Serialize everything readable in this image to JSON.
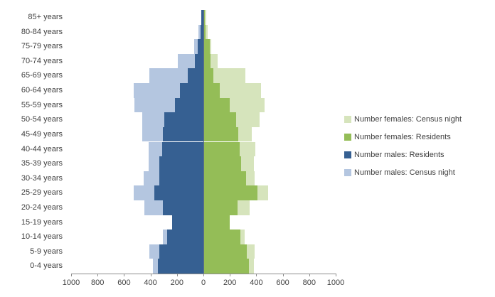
{
  "chart_data": {
    "type": "bar",
    "variant": "population-pyramid",
    "title": "",
    "legend_position": "right",
    "grid": false,
    "categories": [
      "85+ years",
      "80-84 years",
      "75-79 years",
      "70-74 years",
      "65-69 years",
      "60-64 years",
      "55-59 years",
      "50-54 years",
      "45-49 years",
      "40-44 years",
      "35-39 years",
      "30-34 years",
      "25-29 years",
      "20-24 years",
      "15-19 years",
      "10-14 years",
      "5-9 years",
      "0-4 years"
    ],
    "series": [
      {
        "name": "Number females: Census night",
        "color": "#d6e4bc",
        "side": "right",
        "layer": "back",
        "values": [
          20,
          30,
          58,
          105,
          317,
          433,
          460,
          427,
          367,
          394,
          383,
          389,
          487,
          351,
          195,
          310,
          385,
          380
        ]
      },
      {
        "name": "Number females: Residents",
        "color": "#94bd57",
        "side": "right",
        "layer": "front",
        "values": [
          12,
          15,
          46,
          55,
          75,
          125,
          197,
          245,
          263,
          276,
          287,
          322,
          406,
          256,
          199,
          280,
          328,
          342
        ]
      },
      {
        "name": "Number males: Residents",
        "color": "#366092",
        "side": "left",
        "layer": "front",
        "values": [
          15,
          22,
          45,
          63,
          118,
          180,
          215,
          296,
          305,
          312,
          332,
          335,
          370,
          308,
          235,
          273,
          335,
          344
        ]
      },
      {
        "name": "Number males: Census night",
        "color": "#b4c6e0",
        "side": "left",
        "layer": "back",
        "values": [
          17,
          38,
          72,
          196,
          411,
          525,
          522,
          465,
          465,
          416,
          416,
          450,
          527,
          446,
          230,
          308,
          407,
          384
        ]
      }
    ],
    "x_axis": {
      "tick_values": [
        -1000,
        -800,
        -600,
        -400,
        -200,
        0,
        200,
        400,
        600,
        800,
        1000
      ],
      "tick_labels": [
        "1000",
        "800",
        "600",
        "400",
        "200",
        "0",
        "200",
        "400",
        "600",
        "800",
        "1000"
      ],
      "max_each_side": 1000
    },
    "colors": {
      "axis_line": "#8c8c8c",
      "text": "#404040",
      "center_line": "#5f7186"
    }
  }
}
